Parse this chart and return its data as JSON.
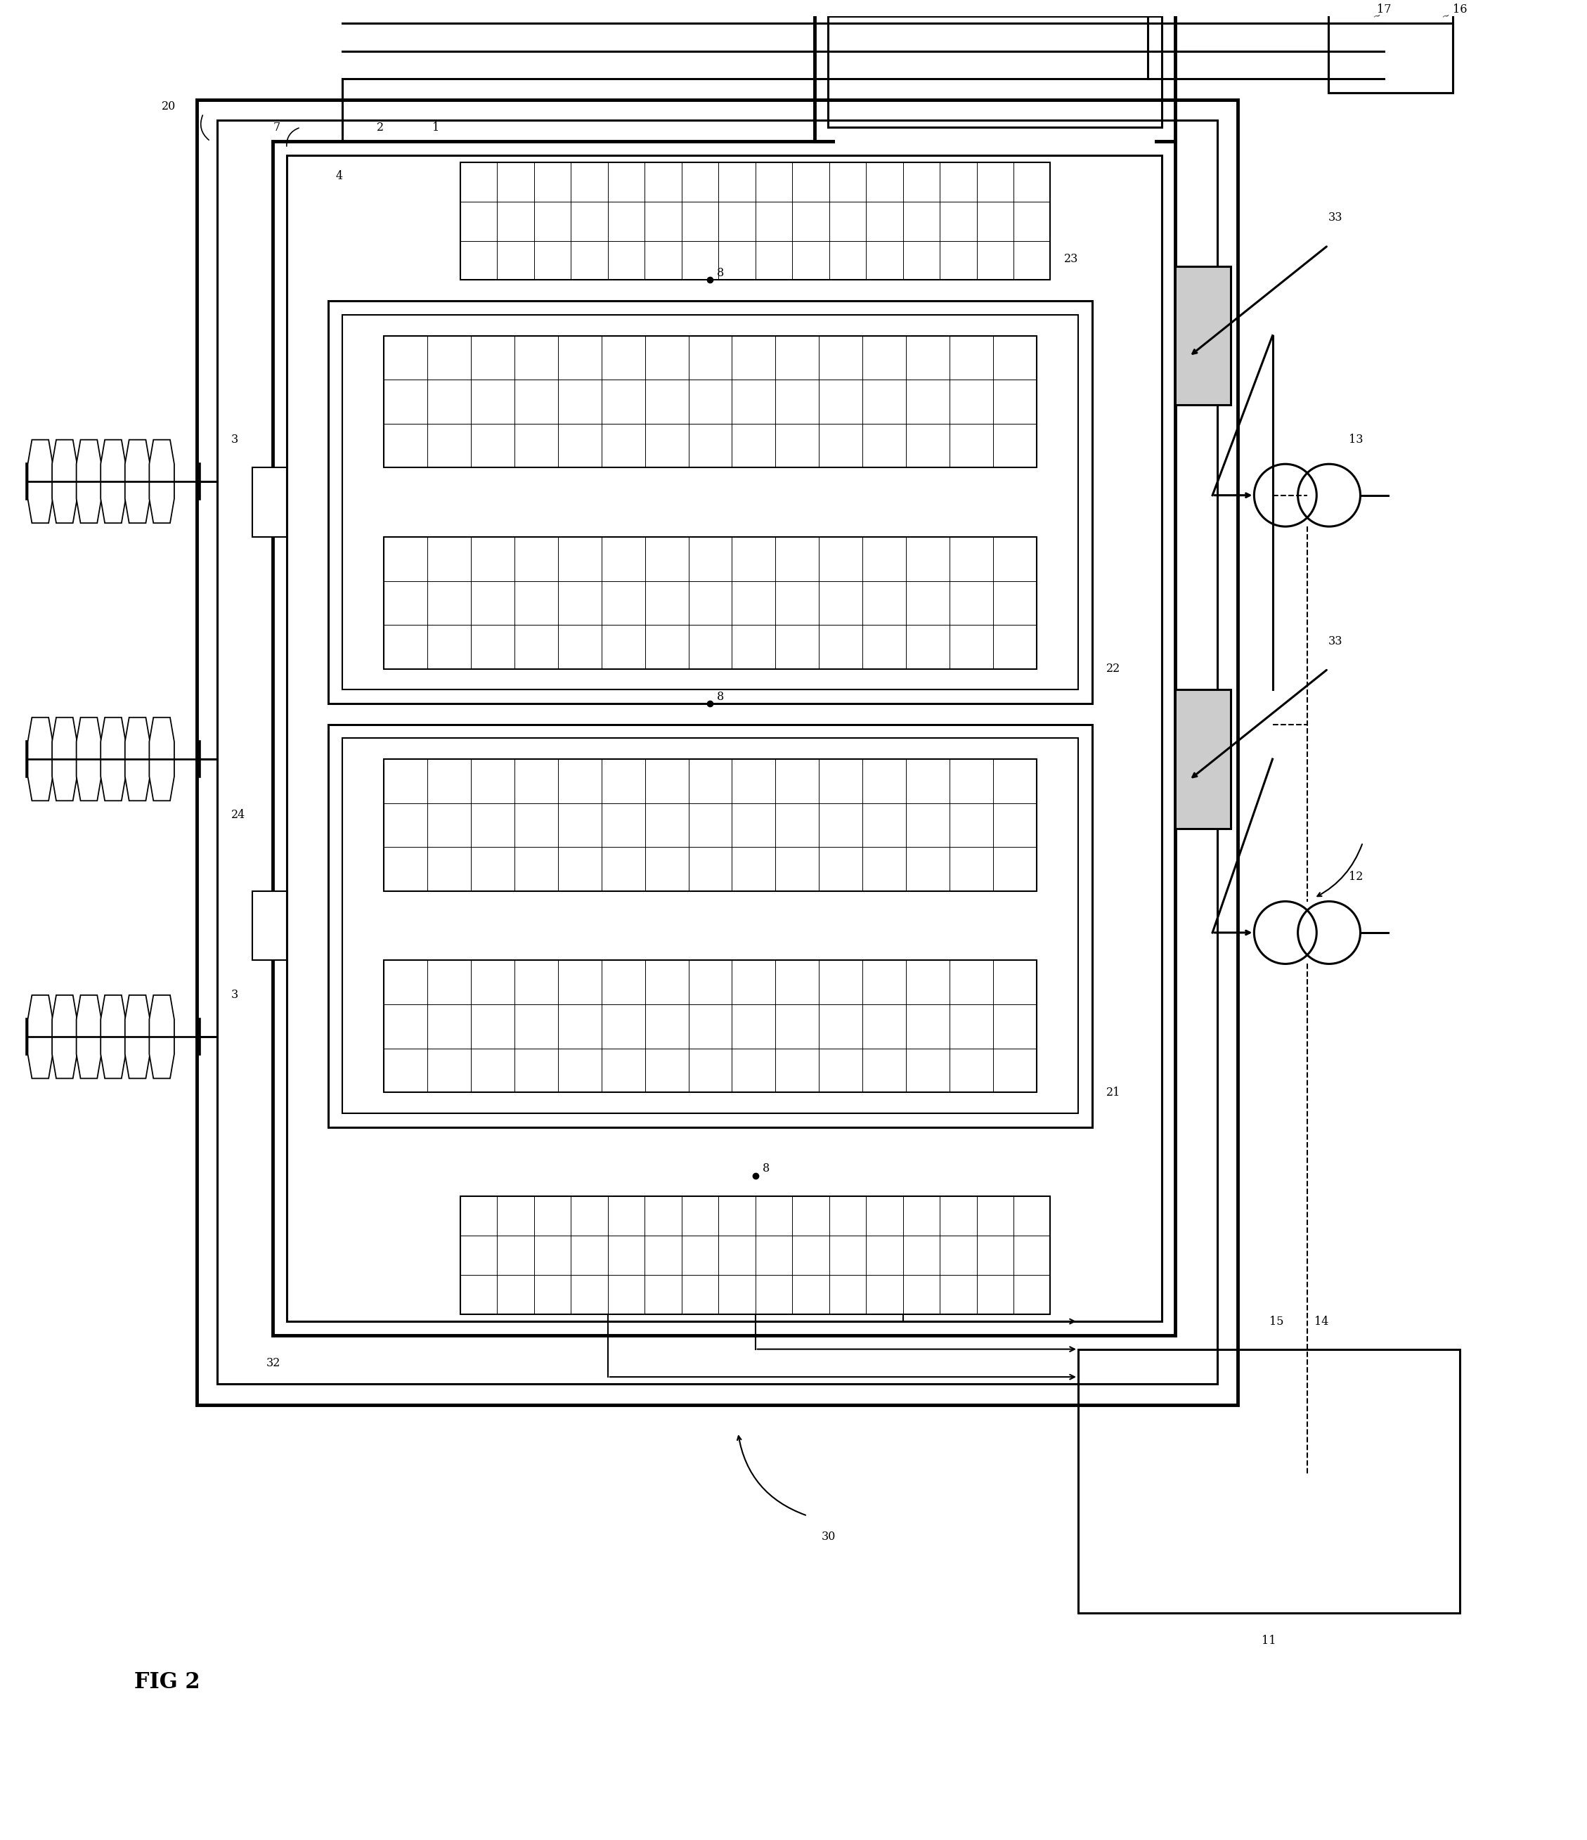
{
  "bg": "#ffffff",
  "lc": "#000000",
  "lw_thick": 3.5,
  "lw_med": 2.2,
  "lw_thin": 1.5,
  "lw_hair": 0.8,
  "fig_label": "FIG 2"
}
